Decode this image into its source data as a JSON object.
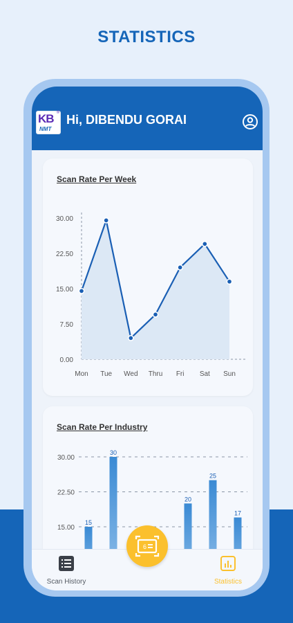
{
  "promo": {
    "title": "STATISTICS"
  },
  "header": {
    "logo_text": "KB",
    "logo_subtext": "NMT",
    "logo_mark": "®",
    "greeting": "Hi, DIBENDU GORAI",
    "profile_icon": "user-circle-icon"
  },
  "weekly_card": {
    "title": "Scan Rate Per Week"
  },
  "industry_card": {
    "title": "Scan Rate Per Industry"
  },
  "bottom_nav": {
    "items": [
      {
        "label": "Scan History",
        "icon": "list-icon",
        "active": false
      },
      {
        "label": "Statistics",
        "icon": "bar-chart-icon",
        "active": true
      }
    ],
    "scan_button_icon": "scan-icon"
  },
  "colors": {
    "primary": "#1565b8",
    "accent": "#fbc02d",
    "line": "#1a5fb4",
    "area_fill": "#dce8f5",
    "bar_top": "#3a8ad4",
    "bar_bottom": "#9cc6ec"
  },
  "chart_data": [
    {
      "type": "area",
      "title": "Scan Rate Per Week",
      "categories": [
        "Mon",
        "Tue",
        "Wed",
        "Thru",
        "Fri",
        "Sat",
        "Sun"
      ],
      "series": [
        {
          "values": [
            14.5,
            29.5,
            4.5,
            9.5,
            19.5,
            24.5,
            16.5
          ]
        }
      ],
      "y_ticks": [
        "0.00",
        "7.50",
        "15.00",
        "22.50",
        "30.00"
      ],
      "ylim": [
        0,
        30
      ],
      "grid": false
    },
    {
      "type": "bar",
      "title": "Scan Rate Per Industry",
      "y_ticks": [
        "15.00",
        "22.50",
        "30.00"
      ],
      "ylim": [
        0,
        30
      ],
      "series": [
        {
          "values": [
            15,
            30,
            null,
            null,
            20,
            25,
            17
          ],
          "labels": [
            "15",
            "30",
            "",
            "",
            "20",
            "25",
            "17"
          ]
        }
      ],
      "grid": true
    }
  ]
}
